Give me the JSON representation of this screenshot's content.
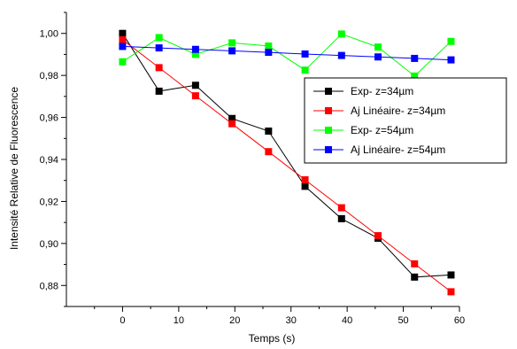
{
  "chart_data": {
    "type": "line",
    "xlabel": "Temps (s)",
    "ylabel": "Intensité Relative de Fluorescence",
    "xlim": [
      -10,
      60
    ],
    "ylim": [
      0.87,
      1.01
    ],
    "xticks": [
      0,
      10,
      20,
      30,
      40,
      50,
      60
    ],
    "xtick_labels": [
      "0",
      "10",
      "20",
      "30",
      "40",
      "50",
      "60"
    ],
    "yticks": [
      0.88,
      0.9,
      0.92,
      0.94,
      0.96,
      0.98,
      1.0
    ],
    "ytick_labels": [
      "0,88",
      "0,90",
      "0,92",
      "0,94",
      "0,96",
      "0,98",
      "1,00"
    ],
    "grid": false,
    "legend_position": "right",
    "series": [
      {
        "name": "Exp- z=34µm",
        "color": "#000000",
        "marker": "square",
        "x": [
          0,
          6.5,
          13,
          19.5,
          26,
          32.5,
          39,
          45.5,
          52,
          58.5
        ],
        "y": [
          1.0,
          0.9725,
          0.9753,
          0.9595,
          0.9535,
          0.9272,
          0.9118,
          0.9025,
          0.884,
          0.885
        ]
      },
      {
        "name": "Aj Linéaire- z=34µm",
        "color": "#ff0000",
        "marker": "square",
        "x": [
          0,
          6.5,
          13,
          19.5,
          26,
          32.5,
          39,
          45.5,
          52,
          58.5
        ],
        "y": [
          0.997,
          0.9837,
          0.9703,
          0.957,
          0.9437,
          0.9303,
          0.917,
          0.9037,
          0.8903,
          0.877
        ]
      },
      {
        "name": "Exp- z=54µm",
        "color": "#00ff00",
        "marker": "square",
        "x": [
          0,
          6.5,
          13,
          19.5,
          26,
          32.5,
          39,
          45.5,
          52,
          58.5
        ],
        "y": [
          0.9865,
          0.998,
          0.99,
          0.9955,
          0.994,
          0.9825,
          0.9997,
          0.9935,
          0.9797,
          0.9962
        ]
      },
      {
        "name": "Aj Linéaire- z=54µm",
        "color": "#0000ff",
        "marker": "square",
        "x": [
          0,
          6.5,
          13,
          19.5,
          26,
          32.5,
          39,
          45.5,
          52,
          58.5
        ],
        "y": [
          0.9938,
          0.9931,
          0.9924,
          0.9917,
          0.991,
          0.9902,
          0.9895,
          0.9888,
          0.9881,
          0.9874
        ]
      }
    ]
  }
}
